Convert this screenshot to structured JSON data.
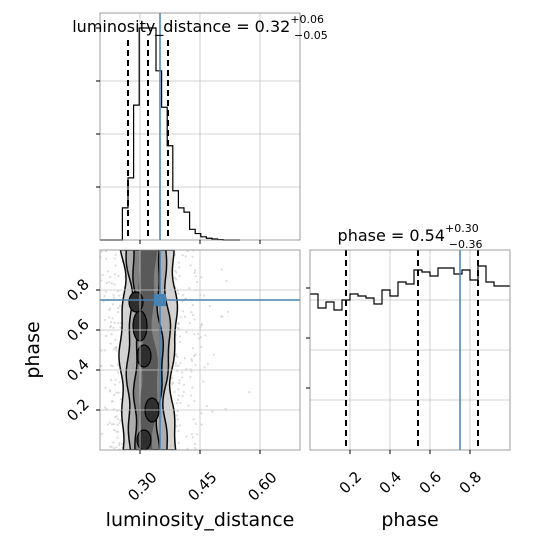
{
  "chart_data": [
    {
      "type": "histogram",
      "panel": "luminosity_distance marginal",
      "title": {
        "prefix": "luminosity_distance = 0.32",
        "sup": "+0.06",
        "sub": "−0.05"
      },
      "xlim": [
        0.2,
        0.7
      ],
      "bin_edges": [
        0.2,
        0.214,
        0.228,
        0.242,
        0.256,
        0.27,
        0.284,
        0.298,
        0.312,
        0.326,
        0.34,
        0.354,
        0.368,
        0.382,
        0.396,
        0.41,
        0.424,
        0.438,
        0.452,
        0.466,
        0.48,
        0.494,
        0.508,
        0.522,
        0.536,
        0.55
      ],
      "counts": [
        0,
        0,
        0,
        0,
        0.15,
        0.29,
        0.63,
        0.99,
        0.99,
        0.99,
        0.79,
        0.62,
        0.44,
        0.23,
        0.15,
        0.13,
        0.05,
        0.03,
        0.015,
        0.008,
        0.005,
        0.002,
        0,
        0,
        0
      ],
      "quantile_lines": [
        0.27,
        0.32,
        0.37
      ],
      "truth": 0.35,
      "grid": true
    },
    {
      "type": "heatmap",
      "panel": "phase vs luminosity_distance",
      "xlabel": "luminosity_distance",
      "ylabel": "phase",
      "xlim": [
        0.2,
        0.7
      ],
      "ylim": [
        0.0,
        1.0
      ],
      "xticks": [
        "0.30",
        "0.45",
        "0.60"
      ],
      "xtick_values": [
        0.3,
        0.45,
        0.6
      ],
      "yticks": [
        "0.2",
        "0.4",
        "0.6",
        "0.8"
      ],
      "ytick_values": [
        0.2,
        0.4,
        0.6,
        0.8
      ],
      "x_center": 0.32,
      "x_spread": 0.05,
      "truth": {
        "x": 0.35,
        "y": 0.75
      },
      "grid": true
    },
    {
      "type": "histogram",
      "panel": "phase marginal",
      "title": {
        "prefix": "phase = 0.54",
        "sup": "+0.30",
        "sub": "−0.36"
      },
      "xlabel": "phase",
      "xlim": [
        0.0,
        1.0
      ],
      "xticks": [
        "0.2",
        "0.4",
        "0.6",
        "0.8"
      ],
      "xtick_values": [
        0.2,
        0.4,
        0.6,
        0.8
      ],
      "bin_edges": [
        0.0,
        0.04,
        0.08,
        0.12,
        0.16,
        0.2,
        0.24,
        0.28,
        0.32,
        0.36,
        0.4,
        0.44,
        0.48,
        0.52,
        0.56,
        0.6,
        0.64,
        0.68,
        0.72,
        0.76,
        0.8,
        0.84,
        0.88,
        0.92,
        0.96,
        1.0
      ],
      "counts": [
        0.78,
        0.71,
        0.74,
        0.7,
        0.75,
        0.78,
        0.77,
        0.76,
        0.73,
        0.8,
        0.77,
        0.84,
        0.83,
        0.9,
        0.89,
        0.87,
        0.91,
        0.91,
        0.88,
        0.9,
        0.85,
        0.92,
        0.84,
        0.82,
        0.82
      ],
      "ylim": [
        0,
        1
      ],
      "quantile_lines": [
        0.18,
        0.54,
        0.84
      ],
      "truth": 0.75,
      "grid": true
    }
  ],
  "colors": {
    "truth": "#4682b4",
    "grid": "#c4c4c4",
    "hist": "#000000",
    "density_levels": [
      "#d2d2d2",
      "#ababab",
      "#7e7e7e",
      "#565656",
      "#2e2e2e"
    ]
  }
}
